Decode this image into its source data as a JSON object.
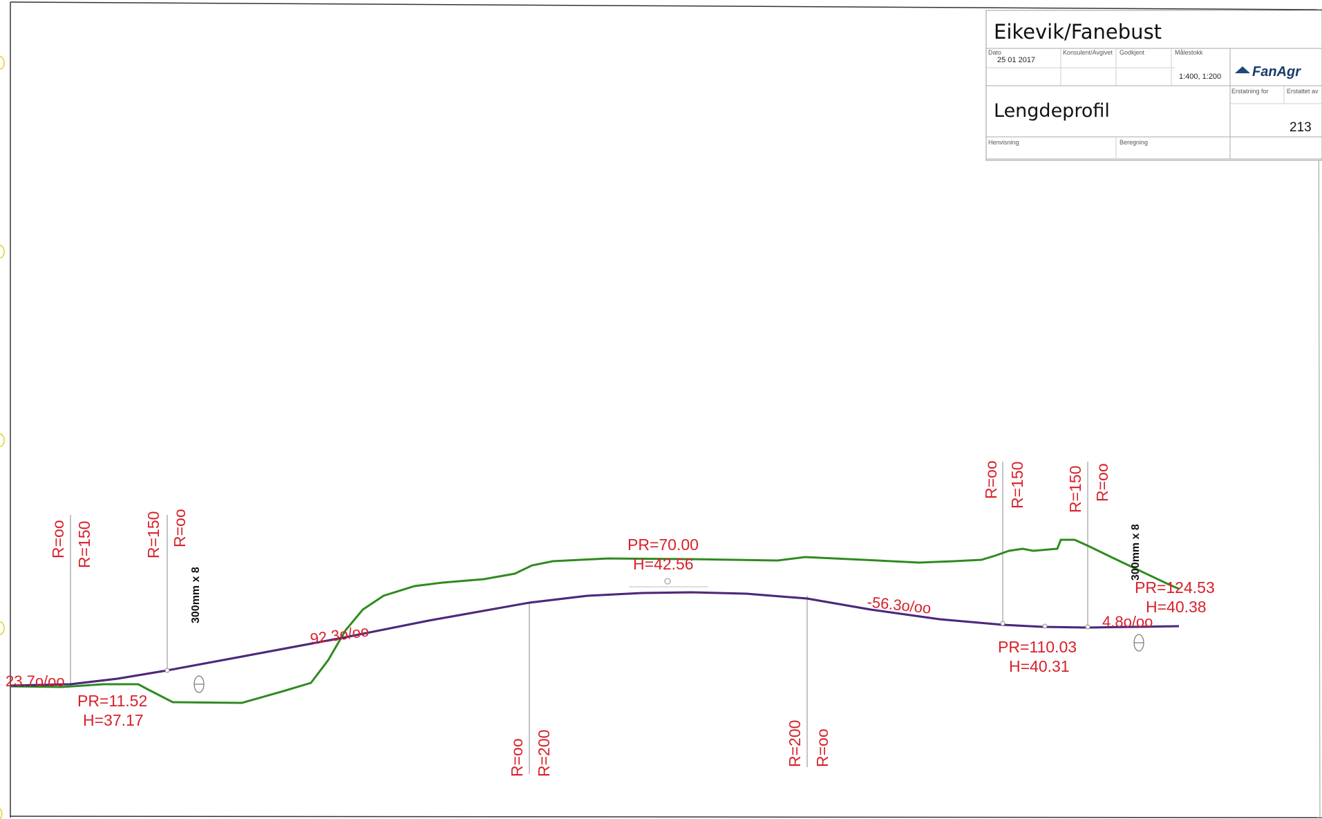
{
  "title_block": {
    "project": "Eikevik/Fanebust",
    "date_label": "Dato",
    "date": "25 01 2017",
    "konsulent_label": "Konsulent/Avgivet",
    "godkjent_label": "Godkjent",
    "scale_label": "Målestokk",
    "scale": "1:400, 1:200",
    "logo": "FanAgr",
    "drawing_title": "Lengdeprofil",
    "erstatning_label": "Erstatning for",
    "erstattet_label": "Erstattet av",
    "drawing_no": "213",
    "henvisning_label": "Henvisning",
    "beregning_label": "Beregning"
  },
  "colors": {
    "terrain": "#2e8b1e",
    "road": "#1a1a8c",
    "label": "#d8202a",
    "frame": "#333333"
  },
  "grades": {
    "g1": "23.7o/oo",
    "g2": "92.3o/oo",
    "g3": "-56.3o/oo",
    "g4": "4.8o/oo"
  },
  "points": {
    "p1_pr": "PR=11.52",
    "p1_h": "H=37.17",
    "p2_pr": "PR=70.00",
    "p2_h": "H=42.56",
    "p3_pr": "PR=110.03",
    "p3_h": "H=40.31",
    "p4_pr": "PR=124.53",
    "p4_h": "H=40.38"
  },
  "radii": {
    "r1": "R=oo",
    "r2": "R=150",
    "r3": "R=150",
    "r4": "R=oo",
    "r5": "R=oo",
    "r6": "R=200",
    "r7": "R=200",
    "r8": "R=oo",
    "r9": "R=oo",
    "r10": "R=150",
    "r11": "R=150",
    "r12": "R=oo"
  },
  "culverts": {
    "c1": "300mm x 8",
    "c2": "300mm x 8"
  },
  "icons": [
    "culvert-icon",
    "vertex-marker-icon",
    "logo-triangle-icon"
  ]
}
